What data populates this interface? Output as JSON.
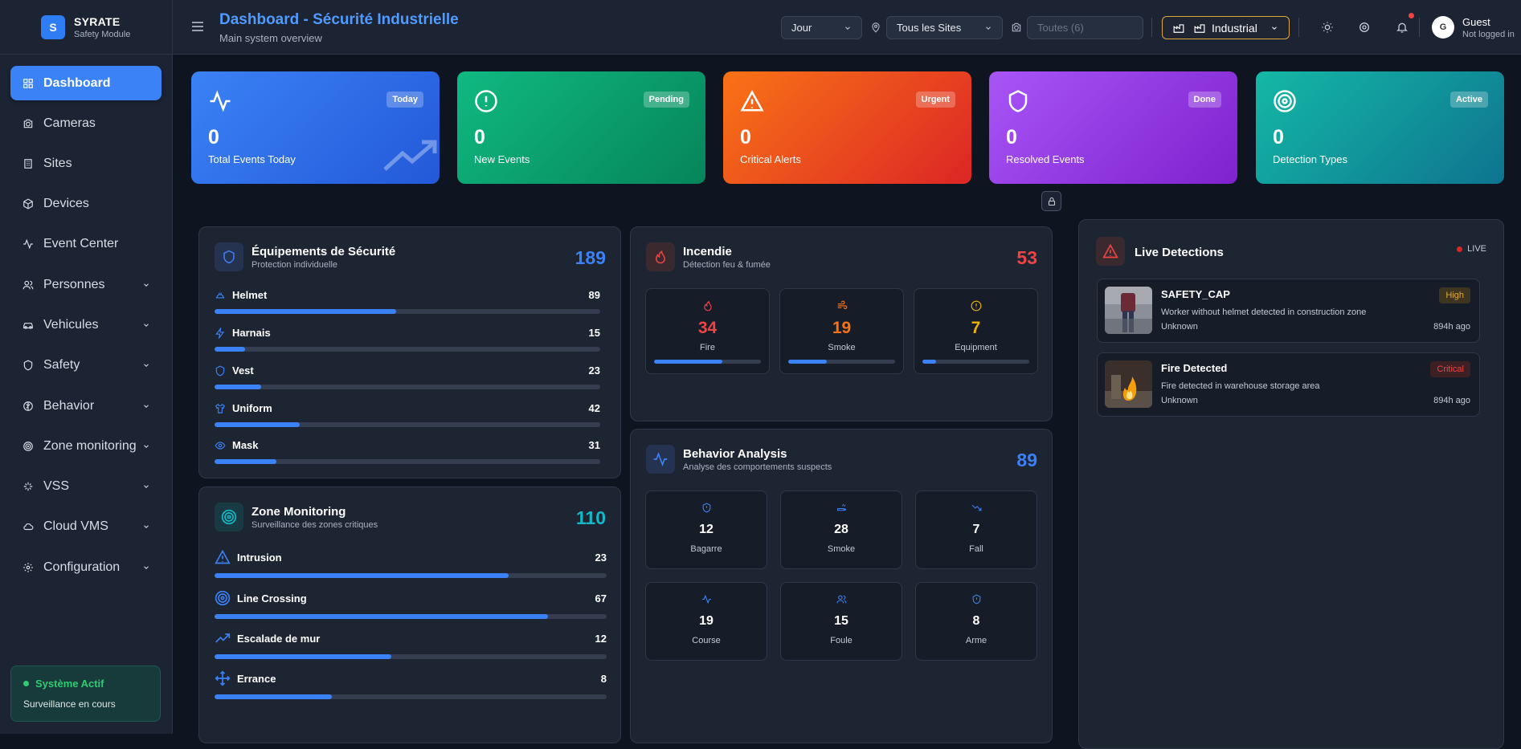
{
  "brand": {
    "logo_letter": "S",
    "name": "SYRATE",
    "subtitle": "Safety Module"
  },
  "sidebar": {
    "items": [
      {
        "label": "Dashboard",
        "icon": "grid-icon",
        "active": true
      },
      {
        "label": "Cameras",
        "icon": "camera-icon"
      },
      {
        "label": "Sites",
        "icon": "building-icon"
      },
      {
        "label": "Devices",
        "icon": "box-icon"
      },
      {
        "label": "Event Center",
        "icon": "activity-icon"
      },
      {
        "label": "Personnes",
        "icon": "users-icon",
        "expandable": true
      },
      {
        "label": "Vehicules",
        "icon": "car-icon",
        "expandable": true
      },
      {
        "label": "Safety",
        "icon": "shield-icon",
        "expandable": true
      },
      {
        "label": "Behavior",
        "icon": "brain-icon",
        "expandable": true
      },
      {
        "label": "Zone monitoring",
        "icon": "target-icon",
        "expandable": true
      },
      {
        "label": "VSS",
        "icon": "sparkle-icon",
        "expandable": true
      },
      {
        "label": "Cloud VMS",
        "icon": "cloud-icon",
        "expandable": true
      },
      {
        "label": "Configuration",
        "icon": "gear-icon",
        "expandable": true
      }
    ],
    "status": {
      "title": "Système Actif",
      "subtitle": "Surveillance en cours"
    }
  },
  "header": {
    "title": "Dashboard - Sécurité Industrielle",
    "subtitle": "Main system overview",
    "period_select": "Jour",
    "site_select": "Tous les Sites",
    "camera_placeholder": "Toutes (6)",
    "industry_select": "Industrial",
    "user": {
      "initial": "G",
      "name": "Guest",
      "status": "Not logged in"
    }
  },
  "stats": [
    {
      "value": "0",
      "label": "Total Events Today",
      "badge": "Today",
      "icon": "activity-icon",
      "color": "#3b82f6"
    },
    {
      "value": "0",
      "label": "New Events",
      "badge": "Pending",
      "icon": "alert-circle-icon",
      "color": "#10b981"
    },
    {
      "value": "0",
      "label": "Critical Alerts",
      "badge": "Urgent",
      "icon": "alert-triangle-icon",
      "color": "#f97316"
    },
    {
      "value": "0",
      "label": "Resolved Events",
      "badge": "Done",
      "icon": "shield-icon",
      "color": "#9333ea"
    },
    {
      "value": "0",
      "label": "Detection Types",
      "badge": "Active",
      "icon": "target-icon",
      "color": "#14b8a6"
    }
  ],
  "equipment": {
    "title": "Équipements de Sécurité",
    "subtitle": "Protection individuelle",
    "total": "189",
    "rows": [
      {
        "label": "Helmet",
        "value": "89",
        "icon": "helmet-icon",
        "fill": 0.47
      },
      {
        "label": "Harnais",
        "value": "15",
        "icon": "zap-icon",
        "fill": 0.08
      },
      {
        "label": "Vest",
        "value": "23",
        "icon": "shield-icon",
        "fill": 0.12
      },
      {
        "label": "Uniform",
        "value": "42",
        "icon": "shirt-icon",
        "fill": 0.22
      },
      {
        "label": "Mask",
        "value": "31",
        "icon": "eye-icon",
        "fill": 0.16
      }
    ]
  },
  "zone": {
    "title": "Zone Monitoring",
    "subtitle": "Surveillance des zones critiques",
    "total": "110",
    "rows": [
      {
        "label": "Intrusion",
        "value": "23",
        "icon": "alert-triangle-icon",
        "fill": 0.75
      },
      {
        "label": "Line Crossing",
        "value": "67",
        "icon": "target-icon",
        "fill": 0.85
      },
      {
        "label": "Escalade de mur",
        "value": "12",
        "icon": "trending-up-icon",
        "fill": 0.45
      },
      {
        "label": "Errance",
        "value": "8",
        "icon": "move-icon",
        "fill": 0.3
      }
    ]
  },
  "fire": {
    "title": "Incendie",
    "subtitle": "Détection feu & fumée",
    "total": "53",
    "items": [
      {
        "label": "Fire",
        "value": "34",
        "icon": "flame-icon",
        "color": "#ef4444",
        "fill": 0.64
      },
      {
        "label": "Smoke",
        "value": "19",
        "icon": "wind-icon",
        "color": "#f97316",
        "fill": 0.36
      },
      {
        "label": "Equipment",
        "value": "7",
        "icon": "alert-circle-icon",
        "color": "#eab308",
        "fill": 0.13
      }
    ]
  },
  "behavior": {
    "title": "Behavior Analysis",
    "subtitle": "Analyse des comportements suspects",
    "total": "89",
    "items": [
      {
        "label": "Bagarre",
        "value": "12",
        "icon": "shield-icon"
      },
      {
        "label": "Smoke",
        "value": "28",
        "icon": "wind-icon"
      },
      {
        "label": "Fall",
        "value": "7",
        "icon": "trending-down-icon"
      },
      {
        "label": "Course",
        "value": "19",
        "icon": "activity-icon"
      },
      {
        "label": "Foule",
        "value": "15",
        "icon": "users-icon"
      },
      {
        "label": "Arme",
        "value": "8",
        "icon": "shield-icon"
      }
    ]
  },
  "live": {
    "title": "Live Detections",
    "badge": "LIVE",
    "items": [
      {
        "title": "SAFETY_CAP",
        "description": "Worker without helmet detected in construction zone",
        "location": "Unknown",
        "severity": "High",
        "ago": "894h ago"
      },
      {
        "title": "Fire Detected",
        "description": "Fire detected in warehouse storage area",
        "location": "Unknown",
        "severity": "Critical",
        "ago": "894h ago"
      }
    ]
  }
}
